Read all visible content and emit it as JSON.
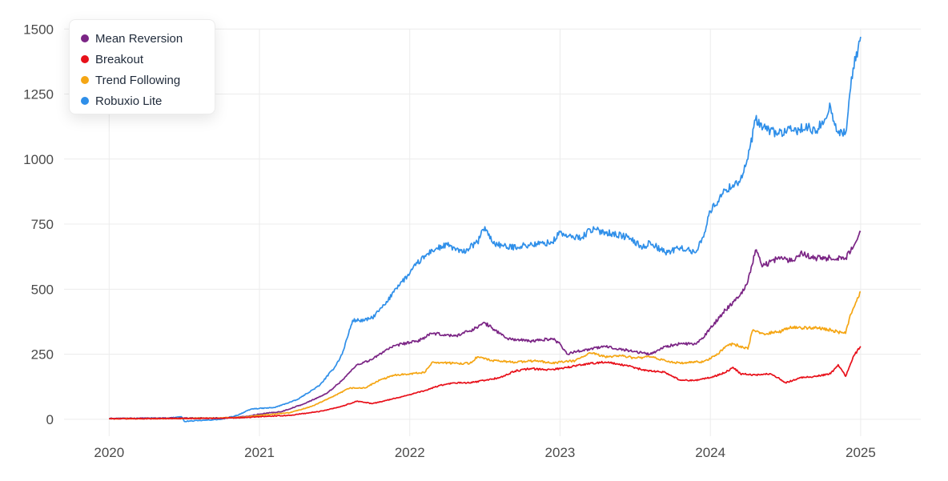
{
  "chart_data": {
    "type": "line",
    "xlim": [
      2019.7,
      2025.4
    ],
    "ylim": [
      -65,
      1550
    ],
    "x_ticks": [
      2020,
      2021,
      2022,
      2023,
      2024,
      2025
    ],
    "x_tick_labels": [
      "2020",
      "2021",
      "2022",
      "2023",
      "2024",
      "2025"
    ],
    "y_ticks": [
      0,
      250,
      500,
      750,
      1000,
      1250,
      1500
    ],
    "y_tick_labels": [
      "0",
      "250",
      "500",
      "750",
      "1000",
      "1250",
      "1500"
    ],
    "grid": true,
    "legend_position": "top-left",
    "series": [
      {
        "name": "Robuxio Lite",
        "color": "#2f8fe9",
        "x": [
          2020.0,
          2020.4,
          2020.48,
          2020.5,
          2020.6,
          2020.75,
          2020.85,
          2020.95,
          2021.1,
          2021.25,
          2021.4,
          2021.5,
          2021.55,
          2021.62,
          2021.7,
          2021.75,
          2021.85,
          2021.9,
          2022.0,
          2022.05,
          2022.15,
          2022.25,
          2022.35,
          2022.45,
          2022.5,
          2022.55,
          2022.65,
          2022.8,
          2022.95,
          2023.0,
          2023.05,
          2023.15,
          2023.2,
          2023.3,
          2023.45,
          2023.55,
          2023.6,
          2023.7,
          2023.8,
          2023.9,
          2023.95,
          2024.0,
          2024.1,
          2024.2,
          2024.25,
          2024.3,
          2024.35,
          2024.45,
          2024.55,
          2024.65,
          2024.7,
          2024.8,
          2024.85,
          2024.9,
          2024.95,
          2025.0
        ],
        "y": [
          3,
          5,
          10,
          -8,
          -5,
          0,
          15,
          40,
          45,
          75,
          130,
          200,
          250,
          380,
          380,
          390,
          450,
          500,
          560,
          600,
          650,
          670,
          640,
          680,
          740,
          680,
          660,
          670,
          680,
          720,
          700,
          700,
          730,
          720,
          700,
          660,
          680,
          640,
          660,
          640,
          700,
          800,
          880,
          920,
          1000,
          1150,
          1120,
          1100,
          1110,
          1120,
          1100,
          1200,
          1100,
          1100,
          1350,
          1470
        ]
      },
      {
        "name": "Mean Reversion",
        "color": "#7b2585",
        "x": [
          2020.0,
          2020.5,
          2020.75,
          2020.9,
          2021.0,
          2021.15,
          2021.3,
          2021.45,
          2021.55,
          2021.65,
          2021.75,
          2021.85,
          2021.95,
          2022.05,
          2022.15,
          2022.3,
          2022.4,
          2022.5,
          2022.55,
          2022.65,
          2022.8,
          2022.95,
          2023.0,
          2023.05,
          2023.1,
          2023.2,
          2023.3,
          2023.4,
          2023.5,
          2023.6,
          2023.7,
          2023.8,
          2023.9,
          2023.95,
          2024.0,
          2024.1,
          2024.2,
          2024.25,
          2024.3,
          2024.35,
          2024.45,
          2024.55,
          2024.6,
          2024.7,
          2024.8,
          2024.9,
          2024.95,
          2025.0
        ],
        "y": [
          3,
          5,
          5,
          10,
          20,
          30,
          60,
          100,
          150,
          210,
          230,
          270,
          290,
          300,
          330,
          320,
          340,
          370,
          350,
          310,
          300,
          310,
          290,
          250,
          260,
          270,
          280,
          270,
          260,
          250,
          280,
          290,
          290,
          310,
          350,
          420,
          480,
          530,
          650,
          590,
          620,
          610,
          640,
          620,
          620,
          620,
          660,
          720
        ]
      },
      {
        "name": "Trend Following",
        "color": "#f5a614",
        "x": [
          2020.0,
          2020.5,
          2020.75,
          2020.9,
          2021.0,
          2021.2,
          2021.35,
          2021.5,
          2021.6,
          2021.7,
          2021.8,
          2021.9,
          2022.0,
          2022.1,
          2022.15,
          2022.3,
          2022.4,
          2022.45,
          2022.55,
          2022.7,
          2022.85,
          2022.95,
          2023.0,
          2023.1,
          2023.2,
          2023.3,
          2023.4,
          2023.5,
          2023.6,
          2023.7,
          2023.8,
          2023.9,
          2023.95,
          2024.05,
          2024.1,
          2024.15,
          2024.25,
          2024.28,
          2024.35,
          2024.45,
          2024.55,
          2024.65,
          2024.75,
          2024.85,
          2024.9,
          2024.93,
          2025.0
        ],
        "y": [
          2,
          3,
          5,
          8,
          15,
          25,
          50,
          90,
          120,
          120,
          150,
          170,
          175,
          180,
          220,
          215,
          215,
          240,
          225,
          220,
          225,
          215,
          220,
          225,
          255,
          240,
          245,
          235,
          240,
          225,
          215,
          220,
          220,
          250,
          280,
          290,
          270,
          340,
          330,
          335,
          355,
          350,
          350,
          335,
          330,
          400,
          490
        ]
      },
      {
        "name": "Breakout",
        "color": "#e8101a",
        "x": [
          2020.0,
          2020.5,
          2020.75,
          2020.9,
          2021.0,
          2021.2,
          2021.4,
          2021.55,
          2021.65,
          2021.75,
          2021.9,
          2022.0,
          2022.1,
          2022.2,
          2022.3,
          2022.4,
          2022.5,
          2022.6,
          2022.7,
          2022.8,
          2022.9,
          2023.0,
          2023.1,
          2023.2,
          2023.3,
          2023.45,
          2023.55,
          2023.7,
          2023.8,
          2023.9,
          2024.0,
          2024.1,
          2024.15,
          2024.2,
          2024.3,
          2024.4,
          2024.45,
          2024.5,
          2024.6,
          2024.7,
          2024.8,
          2024.85,
          2024.9,
          2024.95,
          2025.0
        ],
        "y": [
          2,
          3,
          4,
          6,
          10,
          15,
          30,
          50,
          70,
          60,
          80,
          95,
          110,
          130,
          140,
          140,
          150,
          160,
          185,
          195,
          190,
          195,
          205,
          215,
          220,
          205,
          190,
          180,
          150,
          150,
          160,
          180,
          200,
          175,
          170,
          175,
          160,
          140,
          160,
          165,
          175,
          210,
          165,
          240,
          280
        ]
      }
    ]
  },
  "legend": {
    "items": [
      {
        "label": "Mean Reversion",
        "color": "#7b2585"
      },
      {
        "label": "Breakout",
        "color": "#e8101a"
      },
      {
        "label": "Trend Following",
        "color": "#f5a614"
      },
      {
        "label": "Robuxio Lite",
        "color": "#2f8fe9"
      }
    ]
  }
}
